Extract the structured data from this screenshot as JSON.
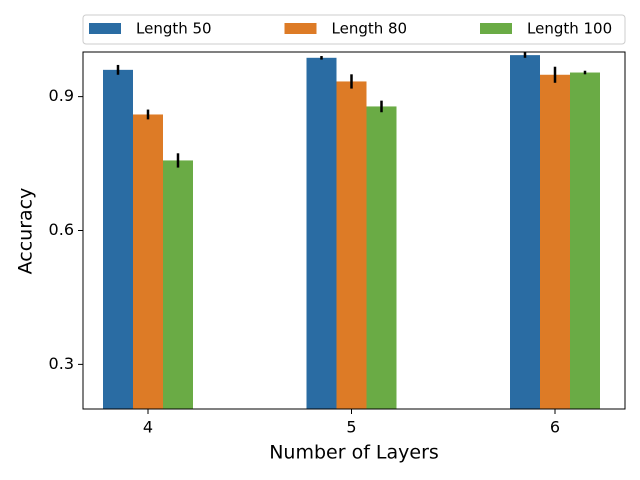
{
  "chart_data": {
    "type": "bar",
    "xlabel": "Number of Layers",
    "ylabel": "Accuracy",
    "categories": [
      "4",
      "5",
      "6"
    ],
    "series": [
      {
        "name": "Length 50",
        "color": "#2a6ca3",
        "values": [
          0.96,
          0.987,
          0.993
        ],
        "errors": [
          0.011,
          0.004,
          0.006
        ]
      },
      {
        "name": "Length 80",
        "color": "#dd7b26",
        "values": [
          0.86,
          0.934,
          0.949
        ],
        "errors": [
          0.011,
          0.016,
          0.018
        ]
      },
      {
        "name": "Length 100",
        "color": "#6aab45",
        "values": [
          0.757,
          0.878,
          0.954
        ],
        "errors": [
          0.016,
          0.013,
          0.004
        ]
      }
    ],
    "ylim": [
      0.2,
      1.0
    ],
    "yticks": [
      0.3,
      0.6,
      0.9
    ],
    "legend": "top"
  }
}
